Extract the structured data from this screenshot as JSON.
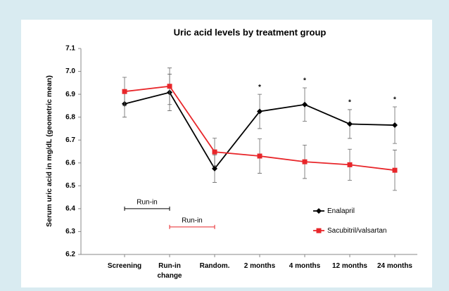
{
  "chart_data": {
    "type": "line",
    "title": "Uric acid levels by treatment group",
    "y_label": "Serum uric acid in mg/dL (geometric mean)",
    "categories": [
      "Screening",
      "Run-in change",
      "Random.",
      "2 months",
      "4 months",
      "12 months",
      "24 months"
    ],
    "series": [
      {
        "name": "Enalapril",
        "color": "#000000",
        "marker": "diamond",
        "values": [
          6.858,
          6.908,
          6.575,
          6.825,
          6.855,
          6.77,
          6.765
        ],
        "errors": [
          0.058,
          0.08,
          0.06,
          0.075,
          0.073,
          0.063,
          0.08
        ]
      },
      {
        "name": "Sacubitril/valsartan",
        "color": "#e8262a",
        "marker": "square",
        "values": [
          6.912,
          6.935,
          6.648,
          6.63,
          6.605,
          6.592,
          6.568
        ],
        "errors": [
          0.062,
          0.08,
          0.06,
          0.075,
          0.073,
          0.068,
          0.088
        ]
      }
    ],
    "significance": [
      null,
      null,
      null,
      "*",
      "*",
      "*",
      "*"
    ],
    "run_in": [
      {
        "label": "Run-in",
        "series": 0,
        "from": 0,
        "to": 1,
        "level": 6.4
      },
      {
        "label": "Run-in",
        "series": 1,
        "from": 1,
        "to": 2,
        "level": 6.32
      }
    ],
    "ylim": [
      6.2,
      7.1
    ],
    "yticks": [
      6.2,
      6.3,
      6.4,
      6.5,
      6.6,
      6.7,
      6.8,
      6.9,
      {
        "value": 7,
        "label": "7.0"
      },
      7.1
    ],
    "legend": "right"
  }
}
